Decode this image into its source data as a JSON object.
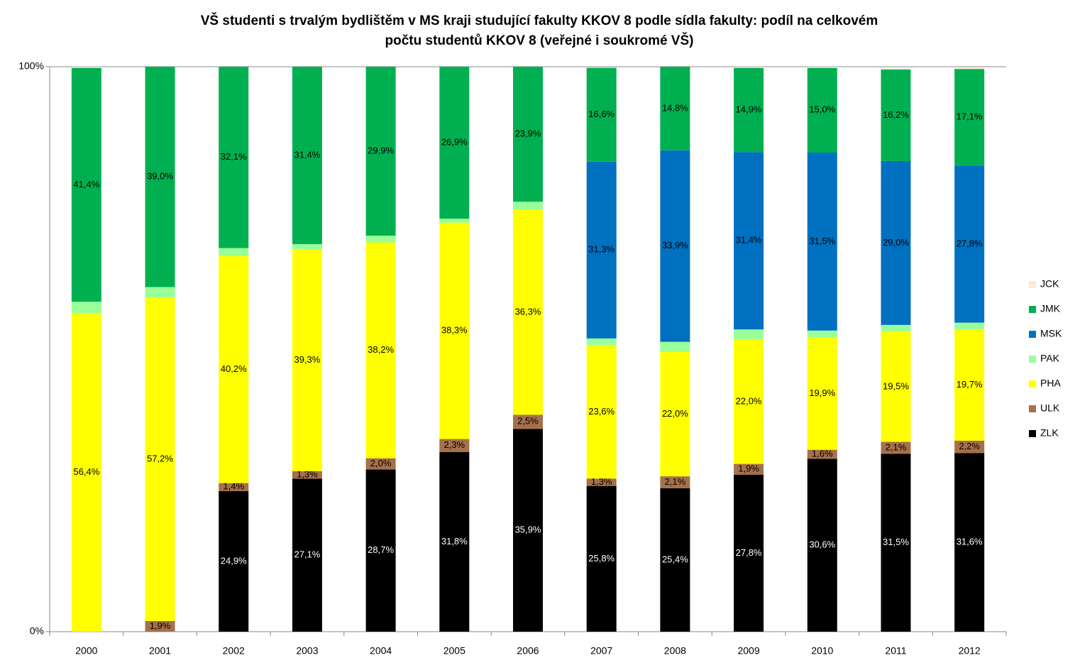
{
  "chart_data": {
    "type": "stacked_bar",
    "title": [
      "VŠ studenti s trvalým bydlištěm v MS kraji studující fakulty KKOV  8 podle  sídla fakulty: podíl na celkovém",
      "počtu studentů KKOV 8  (veřejné i soukromé VŠ)"
    ],
    "categories": [
      "2000",
      "2001",
      "2002",
      "2003",
      "2004",
      "2005",
      "2006",
      "2007",
      "2008",
      "2009",
      "2010",
      "2011",
      "2012"
    ],
    "ylim": [
      0,
      100
    ],
    "yticks": [
      {
        "value": 0,
        "label": "0%"
      },
      {
        "value": 100,
        "label": "100%"
      }
    ],
    "legend": "right",
    "series": [
      {
        "name": "ZLK",
        "color": "#000000",
        "values": [
          0,
          0,
          24.9,
          27.1,
          28.7,
          31.8,
          35.9,
          25.8,
          25.4,
          27.8,
          30.6,
          31.5,
          31.6
        ],
        "value_labels": [
          null,
          null,
          "24,9%",
          "27,1%",
          "28,7%",
          "31,8%",
          "35,9%",
          "25,8%",
          "25,4%",
          "27,8%",
          "30,6%",
          "31,5%",
          "31,6%"
        ]
      },
      {
        "name": "ULK",
        "color": "#a5704a",
        "values": [
          0,
          1.9,
          1.4,
          1.3,
          2.0,
          2.3,
          2.5,
          1.3,
          2.1,
          1.9,
          1.6,
          2.1,
          2.2
        ],
        "value_labels": [
          null,
          "1,9%",
          "1,4%",
          "1,3%",
          "2,0%",
          "2,3%",
          "2,5%",
          "1,3%",
          "2,1%",
          "1,9%",
          "1,6%",
          "2,1%",
          "2,2%"
        ]
      },
      {
        "name": "PHA",
        "color": "#ffff00",
        "values": [
          56.4,
          57.2,
          40.2,
          39.3,
          38.2,
          38.3,
          36.3,
          23.6,
          22.0,
          22.0,
          19.9,
          19.5,
          19.7
        ],
        "value_labels": [
          "56,4%",
          "57,2%",
          "40,2%",
          "39,3%",
          "38,2%",
          "38,3%",
          "36,3%",
          "23,6%",
          "22,0%",
          "22,0%",
          "19,9%",
          "19,5%",
          "19,7%"
        ]
      },
      {
        "name": "PAK",
        "color": "#99ff99",
        "values": [
          2.0,
          1.9,
          1.4,
          0.9,
          1.2,
          0.7,
          1.4,
          1.2,
          1.8,
          1.8,
          1.2,
          1.2,
          1.2
        ],
        "value_labels": [
          null,
          null,
          null,
          null,
          null,
          null,
          null,
          null,
          null,
          null,
          null,
          null,
          null
        ]
      },
      {
        "name": "MSK",
        "color": "#0070c0",
        "values": [
          0,
          0,
          0,
          0,
          0,
          0,
          0,
          31.3,
          33.9,
          31.4,
          31.5,
          29.0,
          27.8
        ],
        "value_labels": [
          null,
          null,
          null,
          null,
          null,
          null,
          null,
          "31,3%",
          "33,9%",
          "31,4%",
          "31,5%",
          "29,0%",
          "27,8%"
        ]
      },
      {
        "name": "JMK",
        "color": "#00b050",
        "values": [
          41.4,
          39.0,
          32.1,
          31.4,
          29.9,
          26.9,
          23.9,
          16.6,
          14.8,
          14.9,
          15.0,
          16.2,
          17.1
        ],
        "value_labels": [
          "41,4%",
          "39,0%",
          "32,1%",
          "31,4%",
          "29,9%",
          "26,9%",
          "23,9%",
          "16,6%",
          "14,8%",
          "14,9%",
          "15,0%",
          "16,2%",
          "17,1%"
        ]
      },
      {
        "name": "JCK",
        "color": "#fde9d9",
        "values": [
          0.2,
          0,
          0,
          0,
          0,
          0,
          0,
          0,
          0,
          0.2,
          0.2,
          0.2,
          0.2
        ],
        "value_labels": [
          null,
          null,
          null,
          null,
          null,
          null,
          null,
          null,
          null,
          null,
          null,
          null,
          null
        ]
      }
    ]
  }
}
